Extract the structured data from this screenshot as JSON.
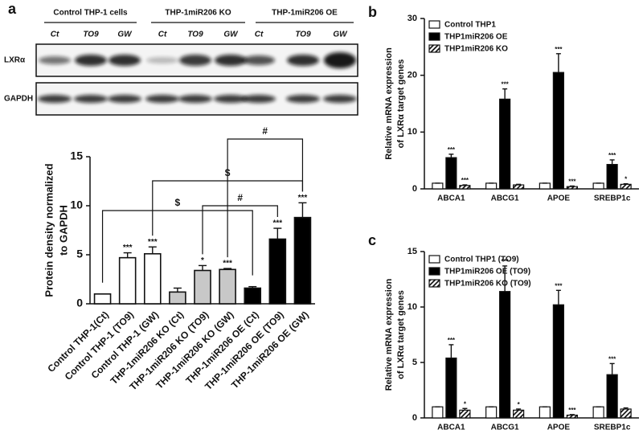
{
  "panel_labels": [
    "a",
    "b",
    "c"
  ],
  "blot": {
    "groups": [
      "Control THP-1 cells",
      "THP-1miR206 KO",
      "THP-1miR206 OE"
    ],
    "lanes": [
      "Ct",
      "TO9",
      "GW",
      "Ct",
      "TO9",
      "GW",
      "Ct",
      "TO9",
      "GW"
    ],
    "rows": [
      "LXRα",
      "GAPDH"
    ]
  },
  "chart_data": [
    {
      "type": "bar",
      "y_label": [
        "Protein density normalized",
        "to GAPDH"
      ],
      "categories": [
        "Control THP-1(Ct)",
        "Control THP-1 (TO9)",
        "Control THP-1 (GW)",
        "THP-1miR206 KO (Ct)",
        "THP-1miR206 KO (TO9)",
        "THP-1miR206 KO (GW)",
        "THP-1miR206 OE (Ct)",
        "THP-1miR206 OE (TO9)",
        "THP-1miR206 OE (GW)"
      ],
      "values": [
        1,
        4.7,
        5.1,
        1.2,
        3.4,
        3.5,
        1.6,
        6.6,
        8.8
      ],
      "errors": [
        0,
        0.5,
        0.7,
        0.4,
        0.5,
        0.1,
        0.15,
        1.1,
        1.5
      ],
      "colors": [
        "#ffffff",
        "#ffffff",
        "#ffffff",
        "#c8c8c8",
        "#c8c8c8",
        "#c8c8c8",
        "#000000",
        "#000000",
        "#000000"
      ],
      "annotations": [
        null,
        "***",
        "***",
        null,
        "*",
        "***",
        null,
        "***",
        "***"
      ],
      "brackets": [
        {
          "from": 0,
          "to": 6,
          "label": "$"
        },
        {
          "from": 4,
          "to": 7,
          "label": "#"
        },
        {
          "from": 2,
          "to": 8,
          "label": "$"
        },
        {
          "from": 5,
          "to": 8,
          "label": "#"
        }
      ],
      "ylim": [
        0,
        15
      ],
      "yticks": [
        0,
        5,
        10,
        15
      ]
    },
    {
      "type": "grouped_bar",
      "y_label": [
        "Relative mRNA expression",
        "of LXRα target genes"
      ],
      "categories": [
        "ABCA1",
        "ABCG1",
        "APOE",
        "SREBP1c"
      ],
      "series": [
        {
          "name": "Control THP1",
          "color": "#ffffff",
          "hatch": false,
          "values": [
            1,
            1,
            1,
            1
          ],
          "errors": [
            0,
            0,
            0,
            0
          ],
          "annotations": [
            null,
            null,
            null,
            null
          ]
        },
        {
          "name": "THP1miR206 OE",
          "color": "#000000",
          "hatch": false,
          "values": [
            5.5,
            15.8,
            20.5,
            4.3
          ],
          "errors": [
            0.6,
            1.8,
            3.3,
            0.8
          ],
          "annotations": [
            "***",
            "***",
            "***",
            "***"
          ]
        },
        {
          "name": "THP1miR206 KO",
          "color": "#000000",
          "hatch": true,
          "values": [
            0.6,
            0.7,
            0.4,
            0.8
          ],
          "errors": [
            0.1,
            0.1,
            0.1,
            0.1
          ],
          "annotations": [
            "***",
            null,
            "***",
            "*"
          ]
        }
      ],
      "ylim": [
        0,
        30
      ],
      "yticks": [
        0,
        10,
        20,
        30
      ]
    },
    {
      "type": "grouped_bar",
      "y_label": [
        "Relative mRNA expression",
        "of LXRα target genes"
      ],
      "categories": [
        "ABCA1",
        "ABCG1",
        "APOE",
        "SREBP1c"
      ],
      "series": [
        {
          "name": "Control THP1 (TO9)",
          "color": "#ffffff",
          "hatch": false,
          "values": [
            1,
            1,
            1,
            1
          ],
          "errors": [
            0,
            0,
            0,
            0
          ],
          "annotations": [
            null,
            null,
            null,
            null
          ]
        },
        {
          "name": "THP1miR206 OE (TO9)",
          "color": "#000000",
          "hatch": false,
          "values": [
            5.4,
            11.4,
            10.2,
            3.9
          ],
          "errors": [
            1.2,
            2.3,
            1.3,
            1.0
          ],
          "annotations": [
            "***",
            "***",
            "***",
            "***"
          ]
        },
        {
          "name": "THP1miR206 KO (TO9)",
          "color": "#000000",
          "hatch": true,
          "values": [
            0.7,
            0.7,
            0.25,
            0.8
          ],
          "errors": [
            0.15,
            0.1,
            0.05,
            0.1
          ],
          "annotations": [
            "*",
            "*",
            "***",
            null
          ]
        }
      ],
      "ylim": [
        0,
        15
      ],
      "yticks": [
        0,
        5,
        10,
        15
      ]
    }
  ]
}
